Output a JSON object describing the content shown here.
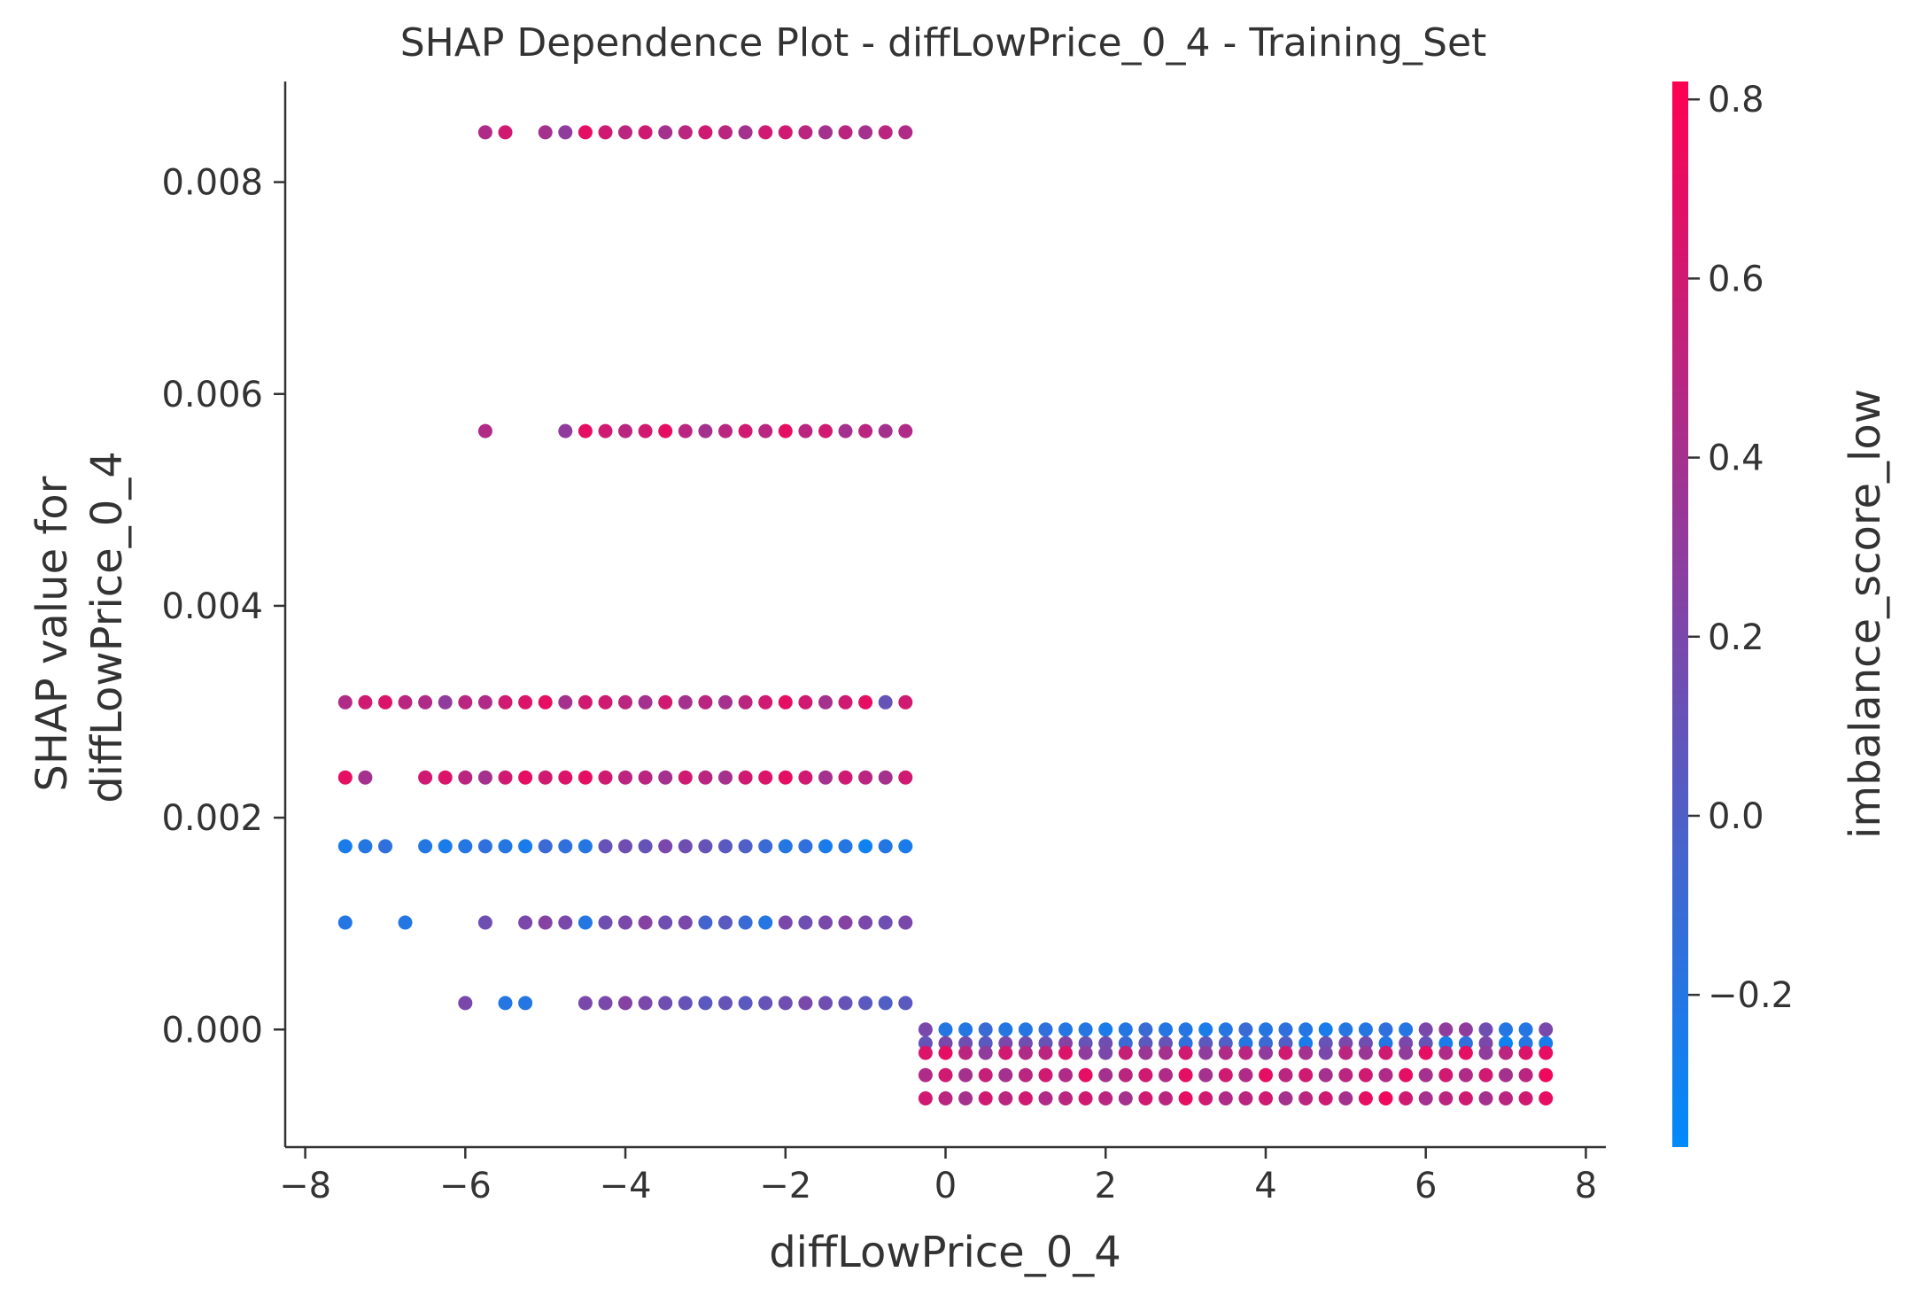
{
  "chart_data": {
    "type": "scatter",
    "title": "SHAP Dependence Plot - diffLowPrice_0_4 - Training_Set",
    "xlabel": "diffLowPrice_0_4",
    "ylabel": [
      "SHAP value for",
      "diffLowPrice_0_4"
    ],
    "colorbar_label": "imbalance_score_low",
    "xlim": [
      -8.25,
      8.25
    ],
    "ylim": [
      -0.00111,
      0.00895
    ],
    "x_ticks": [
      -8,
      -6,
      -4,
      -2,
      0,
      2,
      4,
      6,
      8
    ],
    "x_tick_labels": [
      "−8",
      "−6",
      "−4",
      "−2",
      "0",
      "2",
      "4",
      "6",
      "8"
    ],
    "y_ticks": [
      0.0,
      0.002,
      0.004,
      0.006,
      0.008
    ],
    "y_tick_labels": [
      "0.000",
      "0.002",
      "0.004",
      "0.006",
      "0.008"
    ],
    "colorbar_range": [
      -0.37,
      0.82
    ],
    "colorbar_ticks": [
      -0.2,
      0.0,
      0.2,
      0.4,
      0.6,
      0.8
    ],
    "colorbar_tick_labels": [
      "−0.2",
      "0.0",
      "0.2",
      "0.4",
      "0.6",
      "0.8"
    ],
    "colormap": [
      "#008afb",
      "#ff0052"
    ],
    "grid": false,
    "series": [
      {
        "y": 0.00847,
        "x": [
          -5.75,
          -5.5,
          -5.0,
          -4.75,
          -4.5,
          -4.25,
          -4.0,
          -3.75,
          -3.5,
          -3.25,
          -3.0,
          -2.75,
          -2.5,
          -2.25,
          -2.0,
          -1.75,
          -1.5,
          -1.25,
          -1.0,
          -0.75,
          -0.5
        ],
        "c": [
          0.45,
          0.6,
          0.4,
          0.3,
          0.7,
          0.6,
          0.5,
          0.6,
          0.4,
          0.5,
          0.6,
          0.5,
          0.4,
          0.6,
          0.6,
          0.5,
          0.4,
          0.5,
          0.4,
          0.5,
          0.45
        ]
      },
      {
        "y": 0.00565,
        "x": [
          -5.75,
          -4.75,
          -4.5,
          -4.25,
          -4.0,
          -3.75,
          -3.5,
          -3.25,
          -3.0,
          -2.75,
          -2.5,
          -2.25,
          -2.0,
          -1.75,
          -1.5,
          -1.25,
          -1.0,
          -0.75,
          -0.5
        ],
        "c": [
          0.45,
          0.3,
          0.7,
          0.6,
          0.5,
          0.6,
          0.7,
          0.5,
          0.4,
          0.5,
          0.6,
          0.5,
          0.7,
          0.5,
          0.6,
          0.4,
          0.5,
          0.4,
          0.45
        ]
      },
      {
        "y": 0.00309,
        "x": [
          -7.5,
          -7.25,
          -7.0,
          -6.75,
          -6.5,
          -6.25,
          -6.0,
          -5.75,
          -5.5,
          -5.25,
          -5.0,
          -4.75,
          -4.5,
          -4.25,
          -4.0,
          -3.75,
          -3.5,
          -3.25,
          -3.0,
          -2.75,
          -2.5,
          -2.25,
          -2.0,
          -1.75,
          -1.5,
          -1.25,
          -1.0,
          -0.75,
          -0.5
        ],
        "c": [
          0.45,
          0.6,
          0.65,
          0.5,
          0.45,
          0.3,
          0.5,
          0.45,
          0.6,
          0.65,
          0.7,
          0.4,
          0.6,
          0.6,
          0.5,
          0.4,
          0.6,
          0.4,
          0.5,
          0.4,
          0.5,
          0.6,
          0.7,
          0.6,
          0.4,
          0.6,
          0.7,
          0.1,
          0.6
        ]
      },
      {
        "y": 0.00238,
        "x": [
          -7.5,
          -7.25,
          -6.5,
          -6.25,
          -6.0,
          -5.75,
          -5.5,
          -5.25,
          -5.0,
          -4.75,
          -4.5,
          -4.25,
          -4.0,
          -3.75,
          -3.5,
          -3.25,
          -3.0,
          -2.75,
          -2.5,
          -2.25,
          -2.0,
          -1.75,
          -1.5,
          -1.25,
          -1.0,
          -0.75,
          -0.5
        ],
        "c": [
          0.7,
          0.4,
          0.6,
          0.65,
          0.5,
          0.4,
          0.6,
          0.7,
          0.6,
          0.65,
          0.7,
          0.6,
          0.5,
          0.5,
          0.4,
          0.6,
          0.5,
          0.4,
          0.6,
          0.65,
          0.7,
          0.6,
          0.4,
          0.6,
          0.5,
          0.4,
          0.6
        ]
      },
      {
        "y": 0.00173,
        "x": [
          -7.5,
          -7.25,
          -7.0,
          -6.5,
          -6.25,
          -6.0,
          -5.75,
          -5.5,
          -5.25,
          -5.0,
          -4.75,
          -4.5,
          -4.25,
          -4.0,
          -3.75,
          -3.5,
          -3.25,
          -3.0,
          -2.75,
          -2.5,
          -2.25,
          -2.0,
          -1.75,
          -1.5,
          -1.25,
          -1.0,
          -0.75,
          -0.5
        ],
        "c": [
          -0.25,
          -0.2,
          -0.15,
          -0.2,
          -0.25,
          -0.2,
          -0.15,
          -0.2,
          -0.25,
          -0.1,
          -0.15,
          -0.2,
          0.1,
          0.15,
          0.1,
          0.2,
          0.15,
          0.1,
          0.05,
          0.0,
          -0.1,
          -0.2,
          -0.15,
          -0.25,
          -0.2,
          -0.3,
          -0.2,
          -0.25
        ]
      },
      {
        "y": 0.00101,
        "x": [
          -7.5,
          -6.75,
          -5.75,
          -5.25,
          -5.0,
          -4.75,
          -4.5,
          -4.25,
          -4.0,
          -3.75,
          -3.5,
          -3.25,
          -3.0,
          -2.75,
          -2.5,
          -2.25,
          -2.0,
          -1.75,
          -1.5,
          -1.25,
          -1.0,
          -0.75,
          -0.5
        ],
        "c": [
          -0.2,
          -0.2,
          0.15,
          0.2,
          0.25,
          0.2,
          -0.2,
          0.15,
          0.2,
          0.25,
          0.15,
          0.2,
          -0.05,
          0.05,
          -0.1,
          -0.2,
          0.2,
          0.15,
          0.2,
          0.25,
          0.2,
          0.15,
          0.2
        ]
      },
      {
        "y": 0.00025,
        "x": [
          -6.0,
          -5.5,
          -5.25,
          -4.5,
          -4.25,
          -4.0,
          -3.75,
          -3.5,
          -3.25,
          -3.0,
          -2.75,
          -2.5,
          -2.25,
          -2.0,
          -1.75,
          -1.5,
          -1.25,
          -1.0,
          -0.75,
          -0.5
        ],
        "c": [
          0.2,
          -0.2,
          -0.2,
          0.2,
          0.2,
          0.25,
          0.2,
          0.15,
          0.1,
          0.05,
          0.1,
          0.05,
          0.1,
          0.15,
          0.2,
          0.15,
          0.1,
          0.05,
          0.0,
          0.05
        ]
      },
      {
        "y": 0.0,
        "x": [
          -0.25,
          0.0,
          0.25,
          0.5,
          0.75,
          1.0,
          1.25,
          1.5,
          1.75,
          2.0,
          2.25,
          2.5,
          2.75,
          3.0,
          3.25,
          3.5,
          3.75,
          4.0,
          4.25,
          4.5,
          4.75,
          5.0,
          5.25,
          5.5,
          5.75,
          6.0,
          6.25,
          6.5,
          6.75,
          7.0,
          7.25,
          7.5
        ],
        "c": [
          0.2,
          -0.2,
          -0.2,
          -0.1,
          -0.2,
          -0.2,
          -0.15,
          -0.2,
          -0.2,
          -0.25,
          -0.2,
          -0.1,
          -0.2,
          -0.2,
          -0.25,
          -0.2,
          -0.1,
          -0.2,
          -0.15,
          -0.2,
          -0.25,
          -0.2,
          -0.2,
          -0.15,
          -0.2,
          0.2,
          0.3,
          0.3,
          0.15,
          -0.2,
          -0.2,
          0.2
        ]
      },
      {
        "y": -0.00013,
        "x": [
          -0.25,
          0.0,
          0.25,
          0.5,
          0.75,
          1.0,
          1.25,
          1.5,
          1.75,
          2.0,
          2.25,
          2.5,
          2.75,
          3.0,
          3.25,
          3.5,
          3.75,
          4.0,
          4.25,
          4.5,
          4.75,
          5.0,
          5.25,
          5.5,
          5.75,
          6.0,
          6.25,
          6.5,
          6.75,
          7.0,
          7.25,
          7.5
        ],
        "c": [
          0.1,
          0.2,
          0.15,
          0.05,
          0.2,
          0.15,
          0.1,
          0.25,
          0.1,
          0.15,
          -0.1,
          0.05,
          0.1,
          -0.15,
          0.05,
          0.0,
          -0.2,
          -0.1,
          0.0,
          -0.25,
          0.1,
          0.2,
          0.15,
          -0.2,
          0.2,
          0.1,
          -0.25,
          -0.15,
          0.2,
          -0.3,
          -0.2,
          -0.25
        ]
      },
      {
        "y": -0.00022,
        "x": [
          -0.25,
          0.0,
          0.25,
          0.5,
          0.75,
          1.0,
          1.25,
          1.5,
          1.75,
          2.0,
          2.25,
          2.5,
          2.75,
          3.0,
          3.25,
          3.5,
          3.75,
          4.0,
          4.25,
          4.5,
          4.75,
          5.0,
          5.25,
          5.5,
          5.75,
          6.0,
          6.25,
          6.5,
          6.75,
          7.0,
          7.25,
          7.5
        ],
        "c": [
          0.65,
          0.7,
          0.5,
          0.3,
          0.6,
          0.45,
          0.5,
          0.65,
          0.3,
          0.2,
          0.55,
          0.35,
          0.4,
          0.6,
          0.3,
          0.45,
          0.5,
          0.3,
          0.6,
          0.4,
          0.2,
          0.5,
          0.35,
          0.6,
          0.3,
          0.7,
          0.45,
          0.7,
          0.3,
          0.5,
          0.65,
          0.7
        ]
      },
      {
        "y": -0.00043,
        "x": [
          -0.25,
          0.0,
          0.25,
          0.5,
          0.75,
          1.0,
          1.25,
          1.5,
          1.75,
          2.0,
          2.25,
          2.5,
          2.75,
          3.0,
          3.25,
          3.5,
          3.75,
          4.0,
          4.25,
          4.5,
          4.75,
          5.0,
          5.25,
          5.5,
          5.75,
          6.0,
          6.25,
          6.5,
          6.75,
          7.0,
          7.25,
          7.5
        ],
        "c": [
          0.45,
          0.6,
          0.4,
          0.55,
          0.4,
          0.5,
          0.6,
          0.45,
          0.7,
          0.4,
          0.5,
          0.6,
          0.45,
          0.7,
          0.4,
          0.6,
          0.45,
          0.7,
          0.5,
          0.6,
          0.4,
          0.5,
          0.6,
          0.45,
          0.7,
          0.4,
          0.6,
          0.45,
          0.6,
          0.4,
          0.5,
          0.75
        ]
      },
      {
        "y": -0.00065,
        "x": [
          -0.25,
          0.0,
          0.25,
          0.5,
          0.75,
          1.0,
          1.25,
          1.5,
          1.75,
          2.0,
          2.25,
          2.5,
          2.75,
          3.0,
          3.25,
          3.5,
          3.75,
          4.0,
          4.25,
          4.5,
          4.75,
          5.0,
          5.25,
          5.5,
          5.75,
          6.0,
          6.25,
          6.5,
          6.75,
          7.0,
          7.25,
          7.5
        ],
        "c": [
          0.6,
          0.5,
          0.4,
          0.6,
          0.5,
          0.6,
          0.45,
          0.5,
          0.6,
          0.5,
          0.4,
          0.6,
          0.5,
          0.7,
          0.6,
          0.45,
          0.5,
          0.6,
          0.4,
          0.5,
          0.6,
          0.4,
          0.7,
          0.75,
          0.6,
          0.4,
          0.5,
          0.6,
          0.4,
          0.5,
          0.6,
          0.7
        ]
      }
    ]
  }
}
